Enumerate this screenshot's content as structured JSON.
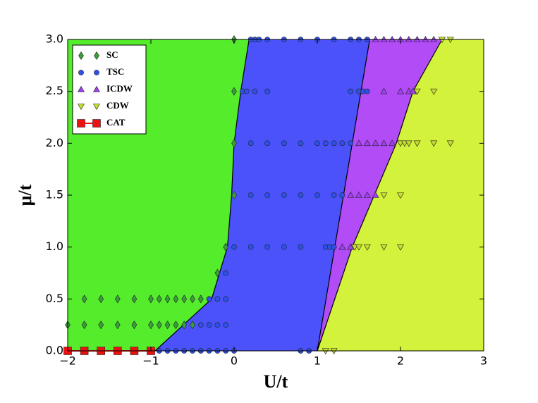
{
  "chart_data": {
    "type": "scatter",
    "xlabel": "U/t",
    "ylabel": "μ/t",
    "xlim": [
      -2,
      3
    ],
    "ylim": [
      0,
      3
    ],
    "xticks": [
      {
        "value": -2,
        "label": "−2"
      },
      {
        "value": -1,
        "label": "−1"
      },
      0,
      1,
      2,
      3
    ],
    "yticks": [
      {
        "value": 0,
        "label": "0.0"
      },
      0.5,
      {
        "value": 1,
        "label": "1.0"
      },
      1.5,
      {
        "value": 2,
        "label": "2.0"
      },
      2.5,
      {
        "value": 3,
        "label": "3.0"
      }
    ],
    "legend": "upper left",
    "region_colors": [
      "#55ec2c",
      "#4b52fa",
      "#b14cf6",
      "#d2f23b"
    ],
    "boundaries": [
      {
        "x": [
          -0.95,
          -0.27,
          -0.08,
          -0.03,
          0.0,
          0.08,
          0.18
        ],
        "y": [
          0,
          0.5,
          1.0,
          1.5,
          2.0,
          2.5,
          3.0
        ]
      },
      {
        "x": [
          1.0,
          1.63
        ],
        "y": [
          0,
          3.0
        ]
      },
      {
        "x": [
          1.0,
          1.42,
          1.95,
          2.15,
          2.5
        ],
        "y": [
          0,
          1.0,
          2.0,
          2.5,
          3.0
        ]
      }
    ],
    "series": [
      {
        "name": "SC",
        "color": "#3a9e3a",
        "marker": "d",
        "x": [
          0,
          0,
          0,
          0,
          -0.1,
          -0.2,
          -1.8,
          -1.6,
          -1.4,
          -1.2,
          -1.0,
          -0.9,
          -0.8,
          -0.7,
          -0.6,
          -0.5,
          -0.4,
          -2.0,
          -1.8,
          -1.6,
          -1.4,
          -1.2,
          -1.0,
          -0.9,
          -0.8,
          -0.7,
          -0.6,
          -0.5
        ],
        "values": [
          3.0,
          2.5,
          2.0,
          1.5,
          1.0,
          0.75,
          0.5,
          0.5,
          0.5,
          0.5,
          0.5,
          0.5,
          0.5,
          0.5,
          0.5,
          0.5,
          0.5,
          0.25,
          0.25,
          0.25,
          0.25,
          0.25,
          0.25,
          0.25,
          0.25,
          0.25,
          0.25,
          0.25
        ]
      },
      {
        "name": "TSC",
        "color": "#2d50e6",
        "marker": "o",
        "x": [
          0.2,
          0.25,
          0.3,
          0.4,
          0.6,
          0.8,
          1.0,
          1.2,
          1.4,
          1.5,
          1.6,
          0.1,
          0.15,
          0.25,
          0.4,
          1.4,
          1.5,
          1.55,
          1.6,
          0.2,
          0.4,
          0.6,
          0.8,
          1.0,
          1.1,
          1.2,
          1.3,
          1.4,
          0.2,
          0.4,
          0.6,
          0.8,
          1.0,
          1.2,
          1.3,
          0,
          0.2,
          0.4,
          0.6,
          0.8,
          1.1,
          1.15,
          1.2,
          -0.1,
          -0.3,
          -0.2,
          -0.1,
          -0.4,
          -0.3,
          -0.2,
          -0.1,
          -0.9,
          -0.8,
          -0.7,
          -0.6,
          -0.5,
          -0.4,
          -0.3,
          -0.2,
          -0.1,
          0,
          0.8,
          0.9
        ],
        "values": [
          3.0,
          3.0,
          3.0,
          3.0,
          3.0,
          3.0,
          3.0,
          3.0,
          3.0,
          3.0,
          3.0,
          2.5,
          2.5,
          2.5,
          2.5,
          2.5,
          2.5,
          2.5,
          2.5,
          2.0,
          2.0,
          2.0,
          2.0,
          2.0,
          2.0,
          2.0,
          2.0,
          2.0,
          1.5,
          1.5,
          1.5,
          1.5,
          1.5,
          1.5,
          1.5,
          1.0,
          1.0,
          1.0,
          1.0,
          1.0,
          1.0,
          1.0,
          1.0,
          0.75,
          0.5,
          0.5,
          0.5,
          0.25,
          0.25,
          0.25,
          0.25,
          0,
          0,
          0,
          0,
          0,
          0,
          0,
          0,
          0,
          0,
          0,
          0
        ]
      },
      {
        "name": "ICDW",
        "color": "#a040f0",
        "marker": "^",
        "x": [
          1.7,
          1.8,
          1.9,
          2.0,
          2.1,
          2.2,
          2.3,
          2.4,
          1.8,
          2.0,
          2.1,
          2.15,
          1.5,
          1.6,
          1.7,
          1.8,
          1.9,
          1.4,
          1.5,
          1.6,
          1.7,
          1.3,
          1.4
        ],
        "values": [
          3.0,
          3.0,
          3.0,
          3.0,
          3.0,
          3.0,
          3.0,
          3.0,
          2.5,
          2.5,
          2.5,
          2.5,
          2.0,
          2.0,
          2.0,
          2.0,
          2.0,
          1.5,
          1.5,
          1.5,
          1.5,
          1.0,
          1.0
        ]
      },
      {
        "name": "CDW",
        "color": "#c8dc30",
        "marker": "v",
        "x": [
          2.5,
          2.6,
          2.2,
          2.4,
          2.0,
          2.05,
          2.1,
          2.2,
          2.4,
          2.6,
          1.8,
          2.0,
          1.45,
          1.5,
          1.6,
          1.8,
          2.0,
          1.1,
          1.2
        ],
        "values": [
          3.0,
          3.0,
          2.5,
          2.5,
          2.0,
          2.0,
          2.0,
          2.0,
          2.0,
          2.0,
          1.5,
          1.5,
          1.0,
          1.0,
          1.0,
          1.0,
          1.0,
          0,
          0
        ]
      },
      {
        "name": "CAT",
        "color": "#ee1111",
        "marker": "s",
        "line": true,
        "x": [
          -2.0,
          -1.8,
          -1.6,
          -1.4,
          -1.2,
          -1.0
        ],
        "values": [
          0,
          0,
          0,
          0,
          0,
          0
        ]
      }
    ]
  }
}
